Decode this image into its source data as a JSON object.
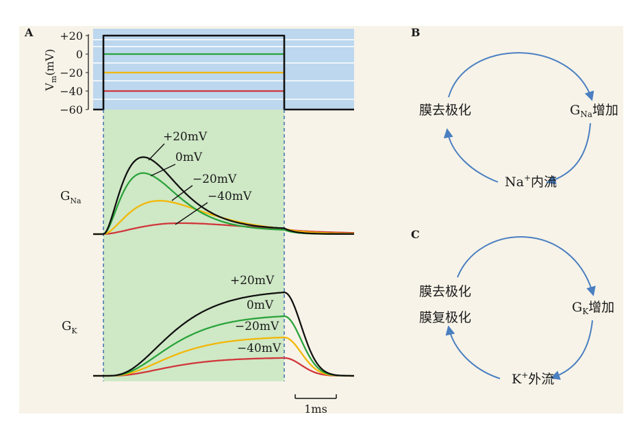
{
  "panel_a": {
    "label": "A",
    "vm_axis": {
      "label_main": "V",
      "label_sub": "m",
      "label_unit": "(mV)",
      "ticks": [
        "+20",
        "0",
        "−20",
        "−40",
        "−60"
      ]
    },
    "voltage_steps_mV": [
      20,
      0,
      -20,
      -40
    ],
    "holding_potential_mV": -60,
    "gna": {
      "name_main": "G",
      "name_sub": "Na",
      "curve_labels": [
        "+20mV",
        "0mV",
        "−20mV",
        "−40mV"
      ]
    },
    "gk": {
      "name_main": "G",
      "name_sub": "K",
      "curve_labels": [
        "+20mV",
        "0mV",
        "−20mV",
        "−40mV"
      ]
    },
    "scale_bar": "1ms"
  },
  "panel_b": {
    "label": "B",
    "node_left": "膜去极化",
    "node_right_main": "G",
    "node_right_sub": "Na",
    "node_right_rest": "增加",
    "node_bottom_main": "Na",
    "node_bottom_sup": "+",
    "node_bottom_rest": "内流"
  },
  "panel_c": {
    "label": "C",
    "node_left_1": "膜去极化",
    "node_left_2": "膜复极化",
    "node_right_main": "G",
    "node_right_sub": "K",
    "node_right_rest": "增加",
    "node_bottom_main": "K",
    "node_bottom_sup": "+",
    "node_bottom_rest": "外流"
  },
  "colors": {
    "background": "#f7f3e8",
    "vm_panel": "#bcd7ee",
    "pulse_window": "#cfe8c6",
    "black_trace": "#111111",
    "green_trace": "#2aa33b",
    "yellow_trace": "#f2b705",
    "red_trace": "#d0363a",
    "dashed_line": "#3f6fae",
    "arrow": "#4a7fc1"
  }
}
